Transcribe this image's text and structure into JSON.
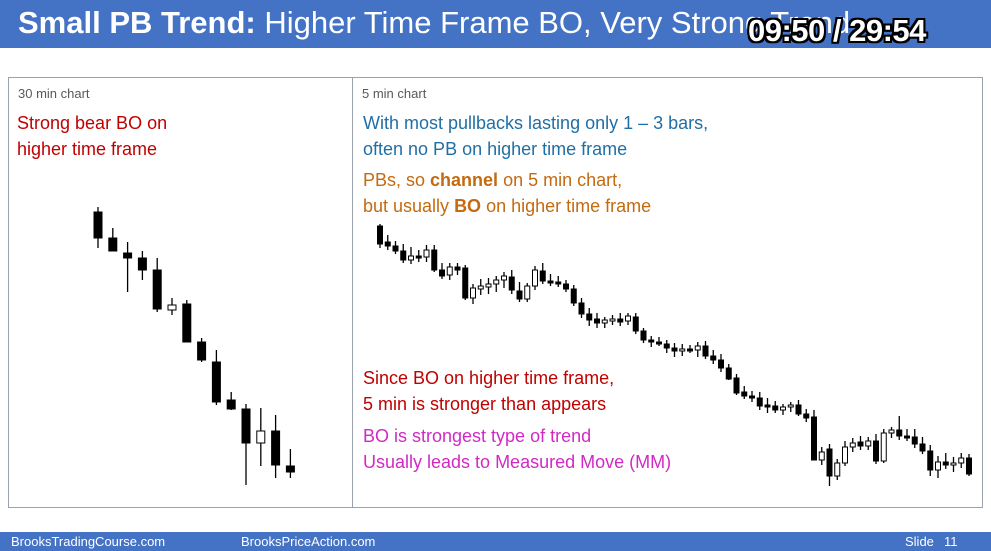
{
  "slide": {
    "title_bold": "Small PB Trend:",
    "title_rest": " Higher Time Frame BO, Very Strong Trend",
    "timer": "09:50 / 29:54"
  },
  "left_panel": {
    "label": "30 min chart",
    "lines": [
      "Strong bear BO on",
      "higher time frame"
    ]
  },
  "right_panel": {
    "label": "5 min chart",
    "blue_lines": [
      "With most pullbacks lasting only 1 – 3 bars,",
      "often no PB on higher time frame"
    ],
    "orange_line1": "PBs, so ",
    "orange_line1_bold": "channel",
    "orange_line1_end": " on 5 min chart,",
    "orange_line2": "but usually ",
    "orange_line2_bold": "BO",
    "orange_line2_end": " on higher time frame",
    "red_lines": [
      "Since BO on higher time frame,",
      "5 min is stronger than appears"
    ],
    "magenta_lines": [
      "BO is strongest type of trend",
      "Usually leads to Measured Move (MM)"
    ]
  },
  "footer": {
    "left_site": "BrooksTradingCourse.com",
    "center_site": "BrooksPriceAction.com",
    "slide_label": "Slide",
    "slide_number": "11"
  },
  "colors": {
    "title_bar": "#4472c4",
    "red_text": "#c00000",
    "blue_text": "#1f6fa6",
    "orange_text": "#c46a10",
    "magenta_text": "#d229c4",
    "bear_candle": "#000000",
    "bull_candle": "#ffffff"
  },
  "chart_30min": [
    {
      "o": 212,
      "h": 207,
      "l": 248,
      "c": 238
    },
    {
      "o": 238,
      "h": 228,
      "l": 250,
      "c": 251
    },
    {
      "o": 253,
      "h": 242,
      "l": 292,
      "c": 258
    },
    {
      "o": 258,
      "h": 251,
      "l": 280,
      "c": 270
    },
    {
      "o": 270,
      "h": 258,
      "l": 312,
      "c": 309
    },
    {
      "o": 310,
      "h": 298,
      "l": 315,
      "c": 305
    },
    {
      "o": 304,
      "h": 300,
      "l": 342,
      "c": 342
    },
    {
      "o": 342,
      "h": 338,
      "l": 362,
      "c": 360
    },
    {
      "o": 362,
      "h": 350,
      "l": 405,
      "c": 402
    },
    {
      "o": 400,
      "h": 392,
      "l": 410,
      "c": 409
    },
    {
      "o": 409,
      "h": 404,
      "l": 485,
      "c": 443
    },
    {
      "o": 443,
      "h": 408,
      "l": 466,
      "c": 431
    },
    {
      "o": 431,
      "h": 415,
      "l": 478,
      "c": 465
    },
    {
      "o": 466,
      "h": 449,
      "l": 478,
      "c": 472
    }
  ],
  "chart_5min": [
    {
      "o": 226,
      "h": 224,
      "l": 248,
      "c": 244
    },
    {
      "o": 242,
      "h": 235,
      "l": 250,
      "c": 246
    },
    {
      "o": 246,
      "h": 241,
      "l": 254,
      "c": 251
    },
    {
      "o": 251,
      "h": 244,
      "l": 263,
      "c": 260
    },
    {
      "o": 260,
      "h": 247,
      "l": 264,
      "c": 256
    },
    {
      "o": 256,
      "h": 250,
      "l": 262,
      "c": 258
    },
    {
      "o": 257,
      "h": 245,
      "l": 262,
      "c": 250
    },
    {
      "o": 250,
      "h": 245,
      "l": 272,
      "c": 270
    },
    {
      "o": 270,
      "h": 263,
      "l": 279,
      "c": 276
    },
    {
      "o": 275,
      "h": 263,
      "l": 280,
      "c": 267
    },
    {
      "o": 267,
      "h": 263,
      "l": 275,
      "c": 270
    },
    {
      "o": 268,
      "h": 265,
      "l": 300,
      "c": 298
    },
    {
      "o": 298,
      "h": 284,
      "l": 304,
      "c": 288
    },
    {
      "o": 289,
      "h": 279,
      "l": 295,
      "c": 286
    },
    {
      "o": 287,
      "h": 278,
      "l": 294,
      "c": 284
    },
    {
      "o": 284,
      "h": 276,
      "l": 292,
      "c": 280
    },
    {
      "o": 280,
      "h": 272,
      "l": 288,
      "c": 276
    },
    {
      "o": 277,
      "h": 270,
      "l": 294,
      "c": 290
    },
    {
      "o": 291,
      "h": 282,
      "l": 302,
      "c": 299
    },
    {
      "o": 299,
      "h": 283,
      "l": 302,
      "c": 286
    },
    {
      "o": 286,
      "h": 266,
      "l": 290,
      "c": 270
    },
    {
      "o": 271,
      "h": 263,
      "l": 284,
      "c": 281
    },
    {
      "o": 281,
      "h": 274,
      "l": 286,
      "c": 283
    },
    {
      "o": 282,
      "h": 276,
      "l": 287,
      "c": 284
    },
    {
      "o": 284,
      "h": 280,
      "l": 292,
      "c": 289
    },
    {
      "o": 289,
      "h": 285,
      "l": 306,
      "c": 303
    },
    {
      "o": 303,
      "h": 298,
      "l": 318,
      "c": 314
    },
    {
      "o": 314,
      "h": 308,
      "l": 326,
      "c": 320
    },
    {
      "o": 319,
      "h": 313,
      "l": 328,
      "c": 323
    },
    {
      "o": 323,
      "h": 317,
      "l": 328,
      "c": 320
    },
    {
      "o": 320,
      "h": 315,
      "l": 325,
      "c": 319
    },
    {
      "o": 319,
      "h": 313,
      "l": 326,
      "c": 322
    },
    {
      "o": 321,
      "h": 313,
      "l": 325,
      "c": 316
    },
    {
      "o": 317,
      "h": 313,
      "l": 334,
      "c": 331
    },
    {
      "o": 331,
      "h": 328,
      "l": 343,
      "c": 340
    },
    {
      "o": 340,
      "h": 336,
      "l": 347,
      "c": 342
    },
    {
      "o": 342,
      "h": 337,
      "l": 346,
      "c": 344
    },
    {
      "o": 344,
      "h": 340,
      "l": 353,
      "c": 348
    },
    {
      "o": 348,
      "h": 343,
      "l": 357,
      "c": 351
    },
    {
      "o": 351,
      "h": 344,
      "l": 356,
      "c": 349
    },
    {
      "o": 349,
      "h": 345,
      "l": 353,
      "c": 350
    },
    {
      "o": 350,
      "h": 342,
      "l": 357,
      "c": 346
    },
    {
      "o": 346,
      "h": 341,
      "l": 359,
      "c": 356
    },
    {
      "o": 356,
      "h": 350,
      "l": 364,
      "c": 360
    },
    {
      "o": 360,
      "h": 354,
      "l": 372,
      "c": 368
    },
    {
      "o": 368,
      "h": 364,
      "l": 380,
      "c": 379
    },
    {
      "o": 378,
      "h": 374,
      "l": 395,
      "c": 393
    },
    {
      "o": 392,
      "h": 386,
      "l": 399,
      "c": 396
    },
    {
      "o": 396,
      "h": 391,
      "l": 402,
      "c": 398
    },
    {
      "o": 398,
      "h": 392,
      "l": 410,
      "c": 406
    },
    {
      "o": 405,
      "h": 398,
      "l": 413,
      "c": 406
    },
    {
      "o": 406,
      "h": 401,
      "l": 413,
      "c": 410
    },
    {
      "o": 410,
      "h": 404,
      "l": 415,
      "c": 407
    },
    {
      "o": 407,
      "h": 402,
      "l": 412,
      "c": 405
    },
    {
      "o": 405,
      "h": 400,
      "l": 416,
      "c": 414
    },
    {
      "o": 414,
      "h": 409,
      "l": 422,
      "c": 418
    },
    {
      "o": 417,
      "h": 410,
      "l": 460,
      "c": 460
    },
    {
      "o": 460,
      "h": 447,
      "l": 465,
      "c": 452
    },
    {
      "o": 449,
      "h": 444,
      "l": 486,
      "c": 476
    },
    {
      "o": 476,
      "h": 459,
      "l": 480,
      "c": 463
    },
    {
      "o": 463,
      "h": 441,
      "l": 466,
      "c": 447
    },
    {
      "o": 447,
      "h": 438,
      "l": 452,
      "c": 443
    },
    {
      "o": 442,
      "h": 436,
      "l": 450,
      "c": 446
    },
    {
      "o": 446,
      "h": 437,
      "l": 450,
      "c": 441
    },
    {
      "o": 441,
      "h": 434,
      "l": 464,
      "c": 461
    },
    {
      "o": 461,
      "h": 429,
      "l": 463,
      "c": 433
    },
    {
      "o": 433,
      "h": 427,
      "l": 438,
      "c": 430
    },
    {
      "o": 430,
      "h": 416,
      "l": 440,
      "c": 436
    },
    {
      "o": 436,
      "h": 429,
      "l": 441,
      "c": 437
    },
    {
      "o": 437,
      "h": 429,
      "l": 448,
      "c": 444
    },
    {
      "o": 444,
      "h": 437,
      "l": 454,
      "c": 451
    },
    {
      "o": 451,
      "h": 445,
      "l": 476,
      "c": 470
    },
    {
      "o": 470,
      "h": 456,
      "l": 478,
      "c": 462
    },
    {
      "o": 462,
      "h": 453,
      "l": 469,
      "c": 465
    },
    {
      "o": 465,
      "h": 457,
      "l": 472,
      "c": 463
    },
    {
      "o": 463,
      "h": 453,
      "l": 468,
      "c": 458
    },
    {
      "o": 458,
      "h": 454,
      "l": 476,
      "c": 474
    }
  ]
}
